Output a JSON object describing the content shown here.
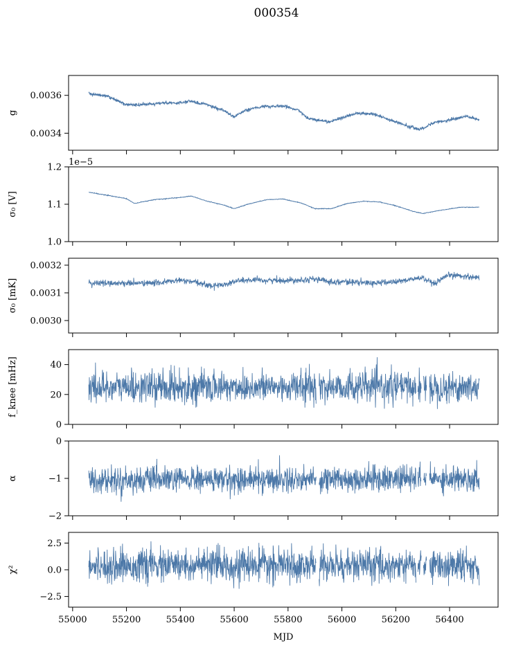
{
  "figure_title": "000354",
  "colors": {
    "series": "#4c78a8",
    "axes": "#000000",
    "background": "#ffffff"
  },
  "chart_data": {
    "type": "line",
    "title": "000354",
    "xlabel": "MJD",
    "xlim": [
      54985,
      56580
    ],
    "x_range": [
      55060,
      56510
    ],
    "x_ticks": [
      55000,
      55200,
      55400,
      55600,
      55800,
      56000,
      56200,
      56400
    ],
    "x_tick_labels": [
      "55000",
      "55200",
      "55400",
      "55600",
      "55800",
      "56000",
      "56200",
      "56400"
    ],
    "panels": [
      {
        "ylabel": "g",
        "ylim": [
          0.00331,
          0.003705
        ],
        "y_ticks": [
          0.0034,
          0.0036
        ],
        "y_tick_labels": [
          "0.0034",
          "0.0036"
        ],
        "offset_text": "",
        "noise": 4e-06,
        "gaps": [],
        "trend": [
          [
            55060,
            0.00361
          ],
          [
            55130,
            0.003595
          ],
          [
            55200,
            0.00355
          ],
          [
            55260,
            0.00355
          ],
          [
            55330,
            0.00356
          ],
          [
            55400,
            0.00356
          ],
          [
            55440,
            0.00357
          ],
          [
            55500,
            0.00355
          ],
          [
            55560,
            0.00352
          ],
          [
            55600,
            0.003485
          ],
          [
            55640,
            0.00352
          ],
          [
            55700,
            0.00354
          ],
          [
            55780,
            0.003545
          ],
          [
            55840,
            0.00352
          ],
          [
            55870,
            0.00348
          ],
          [
            55950,
            0.00346
          ],
          [
            56000,
            0.00348
          ],
          [
            56050,
            0.003505
          ],
          [
            56120,
            0.0035
          ],
          [
            56180,
            0.00347
          ],
          [
            56250,
            0.003435
          ],
          [
            56290,
            0.00342
          ],
          [
            56340,
            0.003455
          ],
          [
            56400,
            0.00347
          ],
          [
            56460,
            0.00349
          ],
          [
            56510,
            0.00347
          ]
        ]
      },
      {
        "ylabel": "σ₀ [V]",
        "ylim": [
          1e-05,
          1.2e-05
        ],
        "y_ticks": [
          1e-05,
          1.1e-05,
          1.2e-05
        ],
        "y_tick_labels": [
          "1.0",
          "1.1",
          "1.2"
        ],
        "offset_text": "1e−5",
        "noise": 4.5e-09,
        "gaps": [],
        "trend": [
          [
            55060,
            1.132e-05
          ],
          [
            55120,
            1.125e-05
          ],
          [
            55200,
            1.115e-05
          ],
          [
            55230,
            1.102e-05
          ],
          [
            55300,
            1.112e-05
          ],
          [
            55400,
            1.118e-05
          ],
          [
            55440,
            1.122e-05
          ],
          [
            55500,
            1.108e-05
          ],
          [
            55560,
            1.098e-05
          ],
          [
            55600,
            1.088e-05
          ],
          [
            55650,
            1.1e-05
          ],
          [
            55720,
            1.112e-05
          ],
          [
            55780,
            1.114e-05
          ],
          [
            55850,
            1.103e-05
          ],
          [
            55900,
            1.088e-05
          ],
          [
            55960,
            1.088e-05
          ],
          [
            56020,
            1.102e-05
          ],
          [
            56080,
            1.108e-05
          ],
          [
            56140,
            1.106e-05
          ],
          [
            56200,
            1.096e-05
          ],
          [
            56260,
            1.082e-05
          ],
          [
            56300,
            1.075e-05
          ],
          [
            56360,
            1.083e-05
          ],
          [
            56440,
            1.092e-05
          ],
          [
            56510,
            1.092e-05
          ]
        ]
      },
      {
        "ylabel": "σ₀ [mK]",
        "ylim": [
          0.002955,
          0.003225
        ],
        "y_ticks": [
          0.003,
          0.0031,
          0.0032
        ],
        "y_tick_labels": [
          "0.0030",
          "0.0031",
          "0.0032"
        ],
        "offset_text": "",
        "noise": 5.5e-06,
        "gaps": [],
        "trend": [
          [
            55060,
            0.003135
          ],
          [
            55200,
            0.003135
          ],
          [
            55300,
            0.003135
          ],
          [
            55400,
            0.003145
          ],
          [
            55440,
            0.00314
          ],
          [
            55520,
            0.003125
          ],
          [
            55560,
            0.00313
          ],
          [
            55620,
            0.003145
          ],
          [
            55700,
            0.003145
          ],
          [
            55800,
            0.003145
          ],
          [
            55900,
            0.00315
          ],
          [
            55960,
            0.00314
          ],
          [
            56020,
            0.00314
          ],
          [
            56100,
            0.003135
          ],
          [
            56200,
            0.00314
          ],
          [
            56300,
            0.003155
          ],
          [
            56340,
            0.00313
          ],
          [
            56400,
            0.003165
          ],
          [
            56510,
            0.003155
          ]
        ]
      },
      {
        "ylabel": "f_knee [mHz]",
        "ylim": [
          0,
          50
        ],
        "y_ticks": [
          0,
          20,
          40
        ],
        "y_tick_labels": [
          "0",
          "20",
          "40"
        ],
        "offset_text": "",
        "noise": 5.2,
        "gaps": [
          [
            55905,
            55915
          ],
          [
            56275,
            56282
          ],
          [
            56295,
            56302
          ],
          [
            56315,
            56325
          ]
        ],
        "trend": [
          [
            55060,
            25
          ],
          [
            56510,
            25
          ]
        ]
      },
      {
        "ylabel": "α",
        "ylim": [
          -2,
          0
        ],
        "y_ticks": [
          -2,
          -1,
          0
        ],
        "y_tick_labels": [
          "−2",
          "−1",
          "0"
        ],
        "offset_text": "",
        "noise": 0.17,
        "gaps": [
          [
            55905,
            55915
          ],
          [
            56275,
            56282
          ],
          [
            56295,
            56302
          ],
          [
            56315,
            56325
          ]
        ],
        "trend": [
          [
            55060,
            -1.05
          ],
          [
            56510,
            -1.0
          ]
        ]
      },
      {
        "ylabel": "χ²",
        "ylim": [
          -3.5,
          3.5
        ],
        "y_ticks": [
          -2.5,
          0,
          2.5
        ],
        "y_tick_labels": [
          "−2.5",
          "0.0",
          "2.5"
        ],
        "offset_text": "",
        "noise": 0.75,
        "gaps": [
          [
            55905,
            55915
          ],
          [
            56275,
            56282
          ],
          [
            56295,
            56302
          ],
          [
            56315,
            56325
          ]
        ],
        "trend": [
          [
            55060,
            0.4
          ],
          [
            56510,
            0.4
          ]
        ]
      }
    ]
  }
}
